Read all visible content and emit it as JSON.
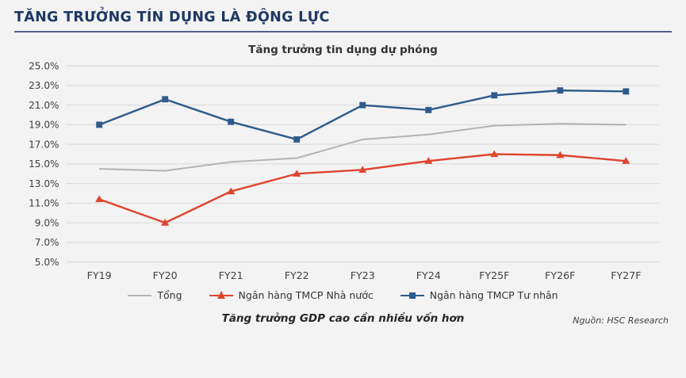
{
  "page": {
    "title": "TĂNG TRƯỞNG TÍN DỤNG LÀ ĐỘNG LỰC",
    "caption": "Tăng trưởng GDP cao cần nhiều vốn hơn",
    "source": "Nguồn: HSC Research",
    "accent_color": "#1f3864"
  },
  "chart_data": {
    "type": "line",
    "title": "Tăng trưởng tin dụng dự phóng",
    "categories": [
      "FY19",
      "FY20",
      "FY21",
      "FY22",
      "FY23",
      "FY24",
      "FY25F",
      "FY26F",
      "FY27F"
    ],
    "series": [
      {
        "name": "Tổng",
        "color": "#b3b3b3",
        "marker": "none",
        "values": [
          14.5,
          14.3,
          15.2,
          15.6,
          17.5,
          18.0,
          18.9,
          19.1,
          19.0
        ]
      },
      {
        "name": "Ngân hàng TMCP Nhà nước",
        "color": "#e0442e",
        "marker": "triangle",
        "values": [
          11.4,
          9.0,
          12.2,
          14.0,
          14.4,
          15.3,
          16.0,
          15.9,
          15.3
        ]
      },
      {
        "name": "Ngân hàng TMCP Tư nhân",
        "color": "#2e5b8c",
        "marker": "square",
        "values": [
          19.0,
          21.6,
          19.3,
          17.5,
          21.0,
          20.5,
          22.0,
          22.5,
          22.4
        ]
      }
    ],
    "ylim": [
      5,
      25
    ],
    "ytick_step": 2,
    "ytick_format": "percent1",
    "grid": "horizontal",
    "legend_position": "bottom"
  }
}
